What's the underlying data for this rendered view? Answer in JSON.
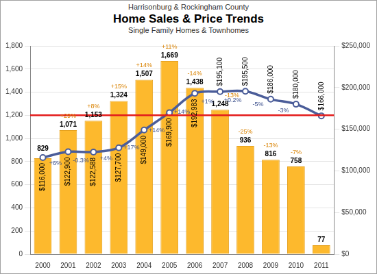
{
  "chart_data": {
    "type": "bar",
    "supertitle": "Harrisonburg & Rockingham County",
    "title": "Home Sales & Price Trends",
    "subtitle": "Single Family Homes & Townhomes",
    "categories": [
      "2000",
      "2001",
      "2002",
      "2003",
      "2004",
      "2005",
      "2006",
      "2007",
      "2008",
      "2009",
      "2010",
      "2011"
    ],
    "series": [
      {
        "type": "bar",
        "color": "#fdb92d",
        "data_labels": true,
        "values": [
          829,
          1071,
          1153,
          1324,
          1507,
          1669,
          1438,
          1248,
          936,
          816,
          758,
          77
        ],
        "value_labels": [
          "829",
          "1,071",
          "1,153",
          "1,324",
          "1,507",
          "1,669",
          "1,438",
          "1,248",
          "936",
          "816",
          "758",
          "77"
        ],
        "change_labels": [
          null,
          "+29%",
          "+8%",
          "+15%",
          "+14%",
          "+11%",
          "-14%",
          "-13%",
          "-25%",
          "-13%",
          "-7%",
          null
        ]
      },
      {
        "type": "line",
        "axis": "y2",
        "color": "#4b5d99",
        "marker": "circle",
        "data_labels": true,
        "values": [
          116000,
          122900,
          122588,
          127700,
          149000,
          169900,
          192983,
          195100,
          195500,
          186000,
          180000,
          166000
        ],
        "value_labels": [
          "$116,000",
          "$122,900",
          "$122,588",
          "$127,700",
          "$149,000",
          "$169,900",
          "$192,983",
          "$195,100",
          "$195,500",
          "$186,000",
          "$180,000",
          "$166,000"
        ],
        "change_labels": [
          null,
          "+6%",
          "-0.3%",
          "+4%",
          "+17%",
          "+14%",
          "+14%",
          "+1%",
          "+0.2%",
          "-5%",
          "-3%",
          null
        ]
      }
    ],
    "ylim": [
      0,
      1800
    ],
    "yticks": [
      0,
      200,
      400,
      600,
      800,
      {
        "value": 1000,
        "label": "1,000"
      },
      {
        "value": 1200,
        "label": "1,200"
      },
      {
        "value": 1400,
        "label": "1,400"
      },
      {
        "value": 1600,
        "label": "1,600"
      },
      {
        "value": 1800,
        "label": "1,800"
      }
    ],
    "y2lim": [
      0,
      250000
    ],
    "y2ticks": [
      {
        "value": 0,
        "label": "$0"
      },
      {
        "value": 50000,
        "label": "$50,000"
      },
      {
        "value": 100000,
        "label": "$100,000"
      },
      {
        "value": 150000,
        "label": "$150,000"
      },
      {
        "value": 200000,
        "label": "$200,000"
      },
      {
        "value": 250000,
        "label": "$250,000"
      }
    ],
    "reference_line": 1200,
    "grid": true
  }
}
